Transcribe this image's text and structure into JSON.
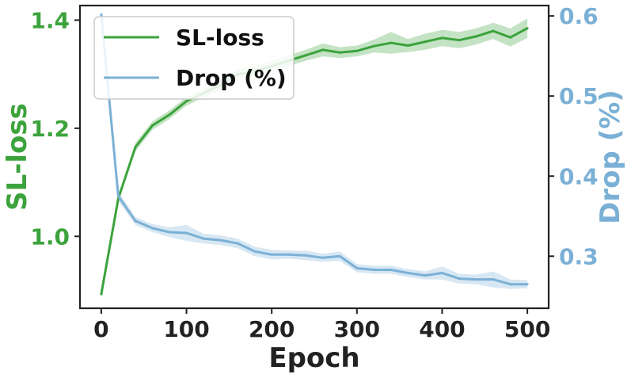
{
  "chart_data": {
    "type": "line",
    "title": "",
    "xlabel": "Epoch",
    "ylabel_left": "SL-loss",
    "ylabel_right": "Drop (%)",
    "xlim": [
      -25,
      525
    ],
    "ylim_left": [
      0.867,
      1.427
    ],
    "ylim_right": [
      0.235,
      0.613
    ],
    "x_ticks": [
      0,
      100,
      200,
      300,
      400,
      500
    ],
    "x_tick_labels": [
      "0",
      "100",
      "200",
      "300",
      "400",
      "500"
    ],
    "y_left_ticks": [
      1.0,
      1.2,
      1.4
    ],
    "y_left_tick_labels": [
      "1.0",
      "1.2",
      "1.4"
    ],
    "y_right_ticks": [
      0.3,
      0.4,
      0.5,
      0.6
    ],
    "y_right_tick_labels": [
      "0.3",
      "0.4",
      "0.5",
      "0.6"
    ],
    "legend_position": "top-left",
    "colors": {
      "sl_loss": "#3ca33c",
      "drop": "#7bb0d6",
      "axes": "#222222",
      "text": "#222222"
    },
    "series": [
      {
        "name": "SL-loss",
        "axis": "left",
        "x": [
          0,
          20,
          40,
          60,
          80,
          100,
          120,
          140,
          160,
          180,
          200,
          220,
          240,
          260,
          280,
          300,
          320,
          340,
          360,
          380,
          400,
          420,
          440,
          460,
          480,
          500
        ],
        "values": [
          0.893,
          1.07,
          1.165,
          1.205,
          1.225,
          1.25,
          1.265,
          1.28,
          1.3,
          1.305,
          1.315,
          1.325,
          1.335,
          1.345,
          1.34,
          1.343,
          1.352,
          1.358,
          1.353,
          1.36,
          1.367,
          1.363,
          1.37,
          1.38,
          1.368,
          1.385
        ],
        "band": [
          0.004,
          0.005,
          0.008,
          0.008,
          0.008,
          0.008,
          0.008,
          0.009,
          0.009,
          0.009,
          0.01,
          0.01,
          0.01,
          0.012,
          0.01,
          0.01,
          0.012,
          0.02,
          0.012,
          0.015,
          0.015,
          0.015,
          0.015,
          0.015,
          0.017,
          0.018
        ]
      },
      {
        "name": "Drop (%)",
        "axis": "right",
        "x": [
          0,
          20,
          40,
          60,
          80,
          100,
          120,
          140,
          160,
          180,
          200,
          220,
          240,
          260,
          280,
          300,
          320,
          340,
          360,
          380,
          400,
          420,
          440,
          460,
          480,
          500
        ],
        "values": [
          0.602,
          0.375,
          0.344,
          0.335,
          0.33,
          0.329,
          0.322,
          0.32,
          0.316,
          0.306,
          0.302,
          0.302,
          0.301,
          0.298,
          0.3,
          0.285,
          0.283,
          0.283,
          0.279,
          0.276,
          0.279,
          0.272,
          0.271,
          0.271,
          0.265,
          0.265
        ],
        "band": [
          0.003,
          0.006,
          0.005,
          0.005,
          0.006,
          0.01,
          0.006,
          0.006,
          0.006,
          0.006,
          0.006,
          0.005,
          0.006,
          0.005,
          0.006,
          0.005,
          0.005,
          0.005,
          0.005,
          0.005,
          0.008,
          0.006,
          0.006,
          0.01,
          0.006,
          0.005
        ]
      }
    ]
  }
}
